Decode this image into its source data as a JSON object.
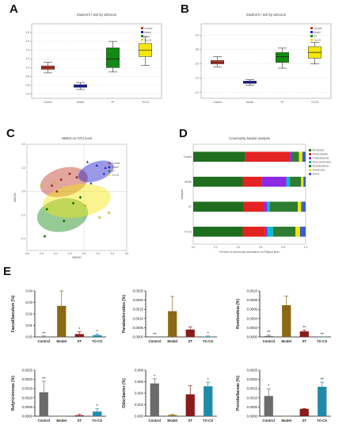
{
  "panels": {
    "A": "A",
    "B": "B",
    "C": "C",
    "D": "D",
    "E": "E"
  },
  "colors": {
    "control": "#c0392b",
    "model": "#1c1ccc",
    "st": "#138a13",
    "trics": "#f5e60a",
    "bar_control": "#6b6b6b",
    "bar_model": "#8b6914",
    "bar_st": "#8b1a1a",
    "bar_trics": "#1f8aa8"
  },
  "chart_data": [
    {
      "id": "A",
      "type": "box",
      "title": "Student's t test by wilcoxon",
      "categories": [
        "Control",
        "Model",
        "ST",
        "Tri-CS"
      ],
      "series": [
        {
          "name": "Control",
          "min": 0.88,
          "q1": 0.96,
          "median": 1.0,
          "q3": 1.04,
          "max": 1.12
        },
        {
          "name": "Model",
          "min": 0.5,
          "q1": 0.55,
          "median": 0.58,
          "q3": 0.61,
          "max": 0.66
        },
        {
          "name": "ST",
          "min": 0.9,
          "q1": 1.0,
          "median": 1.2,
          "q3": 1.45,
          "max": 1.6
        },
        {
          "name": "Tri-CS",
          "min": 1.05,
          "q1": 1.25,
          "median": 1.4,
          "q3": 1.55,
          "max": 1.7
        }
      ],
      "ylim": [
        0.3,
        2.0
      ],
      "yticks": [
        "0.4",
        "0.6",
        "0.8",
        "1.0",
        "1.2",
        "1.4",
        "1.6",
        "1.8"
      ]
    },
    {
      "id": "B",
      "type": "box",
      "title": "Student's t test by wilcoxon",
      "categories": [
        "Control",
        "Model",
        "ST",
        "Tri-CS"
      ],
      "series": [
        {
          "name": "Control",
          "min": 2.9,
          "q1": 3.0,
          "median": 3.05,
          "q3": 3.12,
          "max": 3.25
        },
        {
          "name": "Model",
          "min": 2.25,
          "q1": 2.32,
          "median": 2.36,
          "q3": 2.4,
          "max": 2.45
        },
        {
          "name": "ST",
          "min": 2.85,
          "q1": 3.05,
          "median": 3.25,
          "q3": 3.4,
          "max": 3.55
        },
        {
          "name": "Tri-CS",
          "min": 3.0,
          "q1": 3.2,
          "median": 3.4,
          "q3": 3.6,
          "max": 3.75
        }
      ],
      "ylim": [
        1.8,
        4.4
      ],
      "yticks": [
        "2.0",
        "2.5",
        "3.0",
        "3.5",
        "4.0"
      ]
    },
    {
      "id": "C",
      "type": "scatter",
      "title": "NMDS on OTU level",
      "xlabel": "NMDS1",
      "ylabel": "NMDS2",
      "xlim": [
        -0.8,
        0.6
      ],
      "ylim": [
        -0.5,
        0.4
      ],
      "series": [
        {
          "name": "Control",
          "points": [
            [
              -0.2,
              0.15
            ],
            [
              -0.32,
              0.1
            ],
            [
              -0.45,
              0.05
            ],
            [
              -0.1,
              0.12
            ],
            [
              -0.38,
              0.0
            ]
          ]
        },
        {
          "name": "Model",
          "points": [
            [
              0.05,
              0.25
            ],
            [
              0.18,
              0.22
            ],
            [
              0.28,
              0.15
            ],
            [
              0.1,
              0.07
            ],
            [
              0.3,
              0.2
            ]
          ]
        },
        {
          "name": "ST",
          "points": [
            [
              -0.55,
              -0.38
            ],
            [
              -0.52,
              -0.15
            ],
            [
              -0.28,
              -0.25
            ],
            [
              -0.15,
              -0.1
            ],
            [
              -0.05,
              -0.05
            ]
          ]
        },
        {
          "name": "Tri-CS",
          "points": [
            [
              -0.6,
              0.05
            ],
            [
              -0.42,
              0.08
            ],
            [
              0.02,
              -0.12
            ],
            [
              0.22,
              -0.22
            ],
            [
              0.35,
              -0.18
            ]
          ]
        }
      ]
    },
    {
      "id": "D",
      "type": "bar",
      "title": "Community barplot analysis",
      "ylabel": "Samples",
      "xlabel": "Percent of community abundance on Phylum level",
      "categories": [
        "Tri-CS",
        "ST",
        "Model",
        "Control"
      ],
      "series": [
        {
          "name": "Firmicutes",
          "color": "#1e6e1e",
          "values": [
            0.44,
            0.45,
            0.44,
            0.46
          ]
        },
        {
          "name": "Bacteroidetes",
          "color": "#e32222",
          "values": [
            0.2,
            0.18,
            0.17,
            0.4
          ]
        },
        {
          "name": "Proteobacteria",
          "color": "#8a2be2",
          "values": [
            0.02,
            0.03,
            0.22,
            0.02
          ]
        },
        {
          "name": "Verrucomicrobia",
          "color": "#00bcd4",
          "values": [
            0.05,
            0.02,
            0.03,
            0.0
          ]
        },
        {
          "name": "Actinobacteria",
          "color": "#2e7d32",
          "values": [
            0.2,
            0.25,
            0.1,
            0.06
          ]
        },
        {
          "name": "Tenericutes",
          "color": "#f5e60a",
          "values": [
            0.04,
            0.03,
            0.02,
            0.03
          ]
        },
        {
          "name": "others",
          "color": "#3a5fcd",
          "values": [
            0.05,
            0.04,
            0.02,
            0.03
          ]
        }
      ]
    },
    {
      "id": "E1",
      "type": "bar",
      "ylabel": "Faecalibaculum (%)",
      "categories": [
        "Control",
        "Model",
        "ST",
        "Tri-CS"
      ],
      "values": [
        0.0004,
        0.027,
        0.0025,
        0.0015
      ],
      "err": [
        0.0004,
        0.014,
        0.002,
        0.001
      ],
      "ylim": [
        0,
        0.04
      ],
      "yticks": [
        "0.00",
        "0.01",
        "0.02",
        "0.03",
        "0.04"
      ],
      "sig": [
        "**",
        "",
        "*",
        "*"
      ]
    },
    {
      "id": "E2",
      "type": "bar",
      "ylabel": "Parabacteroides (%)",
      "categories": [
        "Control",
        "Model",
        "ST",
        "Tri-CS"
      ],
      "values": [
        0.0,
        0.0014,
        0.0004,
        2e-05
      ],
      "err": [
        0.0,
        0.0008,
        0.00015,
        3e-05
      ],
      "ylim": [
        0,
        0.0025
      ],
      "yticks": [
        "0.0000",
        "0.0005",
        "0.0010",
        "0.0015",
        "0.0020",
        "0.0025"
      ],
      "sig": [
        "**",
        "",
        "",
        "*"
      ]
    },
    {
      "id": "E3",
      "type": "bar",
      "ylabel": "Romboutsia (%)",
      "categories": [
        "Control",
        "Model",
        "ST",
        "Tri-CS"
      ],
      "values": [
        2e-05,
        0.00069,
        0.00012,
        0.0
      ],
      "err": [
        2e-05,
        0.0002,
        3e-05,
        0.0
      ],
      "ylim": [
        0,
        0.001
      ],
      "yticks": [
        "0.0000",
        "0.0002",
        "0.0004",
        "0.0006",
        "0.0008",
        "0.0010"
      ],
      "sig": [
        "**",
        "",
        "**",
        "**"
      ]
    },
    {
      "id": "E4",
      "type": "bar",
      "ylabel": "Butyricimonas (%)",
      "categories": [
        "Control",
        "Model",
        "ST",
        "Tri-CS"
      ],
      "values": [
        0.0013,
        0.0,
        5e-05,
        0.00025
      ],
      "err": [
        0.0006,
        0.0,
        5e-05,
        0.00015
      ],
      "ylim": [
        0,
        0.0025
      ],
      "yticks": [
        "0.0000",
        "0.0005",
        "0.0010",
        "0.0015",
        "0.0020",
        "0.0025"
      ],
      "sig": [
        "**",
        "",
        "",
        "*"
      ]
    },
    {
      "id": "E5",
      "type": "bar",
      "ylabel": "Odoribacter (%)",
      "categories": [
        "Control",
        "Model",
        "ST",
        "Tri-CS"
      ],
      "values": [
        0.0057,
        0.0002,
        0.0038,
        0.0052
      ],
      "err": [
        0.0008,
        0.0001,
        0.0015,
        0.0007
      ],
      "ylim": [
        0,
        0.008
      ],
      "yticks": [
        "0.000",
        "0.002",
        "0.004",
        "0.006",
        "0.008"
      ],
      "sig": [
        "*",
        "",
        "",
        "*"
      ]
    },
    {
      "id": "E6",
      "type": "bar",
      "ylabel": "Prevotellaceae (%)",
      "categories": [
        "Control",
        "Model",
        "ST",
        "Tri-CS"
      ],
      "values": [
        0.0011,
        0.0,
        0.0004,
        0.0016
      ],
      "err": [
        0.0004,
        0.0,
        2e-05,
        0.00025
      ],
      "ylim": [
        0,
        0.0025
      ],
      "yticks": [
        "0.0000",
        "0.0005",
        "0.0010",
        "0.0015",
        "0.0020",
        "0.0025"
      ],
      "sig": [
        "*",
        "",
        "",
        "**"
      ]
    }
  ]
}
